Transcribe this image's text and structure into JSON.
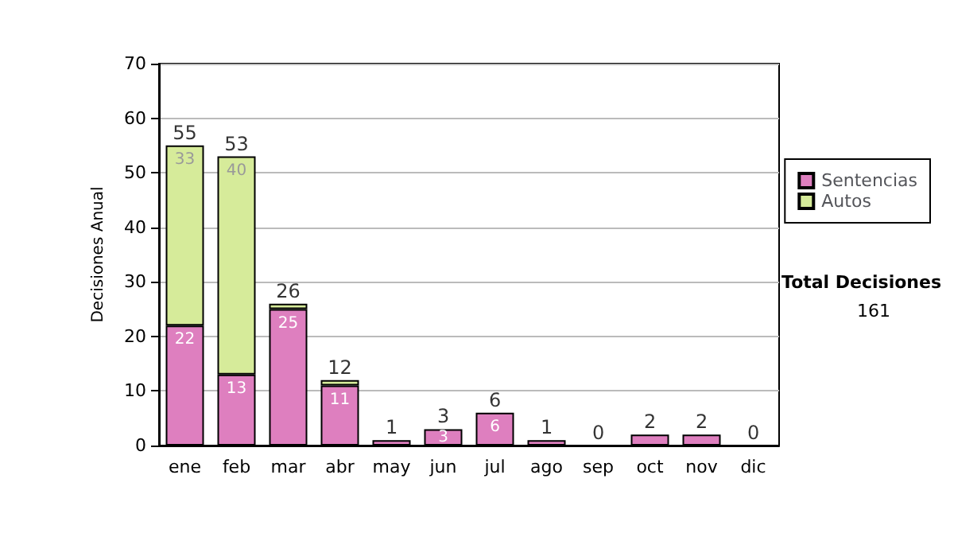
{
  "chart_data": {
    "type": "bar",
    "stacked": true,
    "ylabel": "Decisiones Anual",
    "categories": [
      "ene",
      "feb",
      "mar",
      "abr",
      "may",
      "jun",
      "jul",
      "ago",
      "sep",
      "oct",
      "nov",
      "dic"
    ],
    "series": [
      {
        "name": "Sentencias",
        "color": "#de7fbf",
        "values": [
          22,
          13,
          25,
          11,
          1,
          3,
          6,
          1,
          0,
          2,
          2,
          0
        ],
        "value_labels": [
          "22",
          "13",
          "25",
          "11",
          null,
          "3",
          "6",
          null,
          null,
          null,
          null,
          null
        ]
      },
      {
        "name": "Autos",
        "color": "#d6eb9a",
        "values": [
          33,
          40,
          1,
          1,
          0,
          0,
          0,
          0,
          0,
          0,
          0,
          0
        ],
        "value_labels": [
          "33",
          "40",
          null,
          null,
          null,
          null,
          null,
          null,
          null,
          null,
          null,
          null
        ]
      }
    ],
    "totals": [
      "55",
      "53",
      "26",
      "12",
      "1",
      "3",
      "6",
      "1",
      "0",
      "2",
      "2",
      "0"
    ],
    "ylim": [
      0,
      70
    ],
    "yticks": [
      0,
      10,
      20,
      30,
      40,
      50,
      60,
      70
    ],
    "grid": "y",
    "legend": "right",
    "annotations": [
      "Total Decisiones",
      "161"
    ]
  }
}
